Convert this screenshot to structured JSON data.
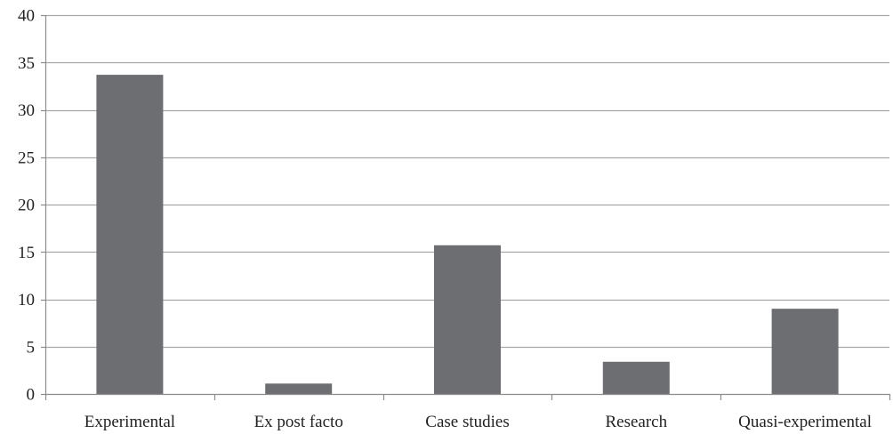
{
  "chart_data": {
    "type": "bar",
    "categories": [
      "Experimental",
      "Ex post facto",
      "Case studies",
      "Research",
      "Quasi-experimental"
    ],
    "values": [
      33.7,
      1.1,
      15.7,
      3.4,
      9.0
    ],
    "title": "",
    "xlabel": "",
    "ylabel": "",
    "ylim": [
      0,
      40
    ],
    "yticks": [
      "0",
      "5",
      "10",
      "15",
      "20",
      "25",
      "30",
      "35",
      "40"
    ],
    "grid": true,
    "legend": "none",
    "bar_color": "#6d6e71",
    "grid_color": "#a6a6a6",
    "axis_color": "#8c8c8c"
  }
}
